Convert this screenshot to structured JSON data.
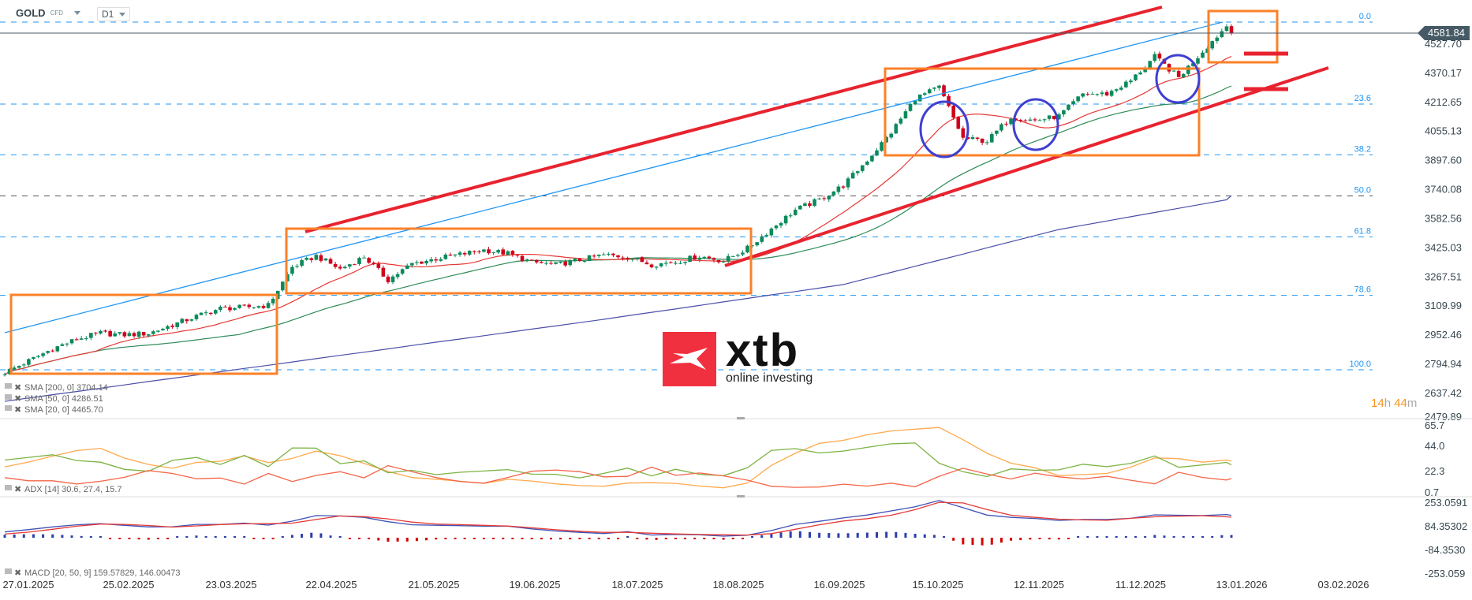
{
  "header": {
    "symbol": "GOLD",
    "instrument_type": "CFD",
    "timeframe": "D1"
  },
  "current_price": "4581.84",
  "countdown": {
    "hours": "14",
    "h": "h",
    "minutes": "44",
    "m": "m"
  },
  "logo": {
    "brand": "xtb",
    "tagline": "online investing",
    "color": "#f1303f"
  },
  "colors": {
    "up": "#0b8a5b",
    "down": "#d0021b",
    "sma20": "#e53935",
    "sma50": "#2e8b57",
    "sma200": "#4a4fa8",
    "fib": "#2196f3",
    "channel": "#e8232f",
    "zone": "#fb8128",
    "circle": "#3f3fd0",
    "adx": "#ffa94d",
    "plus_di": "#7cb342",
    "minus_di": "#f4664a",
    "macd": "#3f51b5",
    "signal": "#e53935"
  },
  "legends": {
    "sma200": "SMA [200, 0] 3704.14",
    "sma50": "SMA [50, 0] 4286.51",
    "sma20": "SMA [20, 0] 4465.70",
    "adx": "ADX [14] 30.6, 27.4, 15.7",
    "macd": "MACD [20, 50, 9] 159.57829, 146.00473"
  },
  "chart_data": [
    {
      "type": "candlestick",
      "title": "",
      "price_axis": [
        "4527.70",
        "4370.17",
        "4212.65",
        "4055.13",
        "3897.60",
        "3740.08",
        "3582.56",
        "3425.03",
        "3267.51",
        "3109.99",
        "2952.46",
        "2794.94",
        "2637.42",
        "2479.89"
      ],
      "date_axis": [
        "27.01.2025",
        "25.02.2025",
        "23.03.2025",
        "22.04.2025",
        "21.05.2025",
        "19.06.2025",
        "18.07.2025",
        "18.08.2025",
        "16.09.2025",
        "15.10.2025",
        "12.11.2025",
        "11.12.2025",
        "13.01.2026",
        "03.02.2026"
      ],
      "close": [
        2745,
        2809,
        2875,
        2926,
        2959,
        2950,
        2958,
        3004,
        3050,
        3093,
        3099,
        3110,
        3317,
        3377,
        3306,
        3373,
        3247,
        3335,
        3362,
        3385,
        3409,
        3390,
        3343,
        3329,
        3355,
        3382,
        3372,
        3330,
        3345,
        3376,
        3350,
        3418,
        3525,
        3626,
        3681,
        3759,
        3896,
        4046,
        4230,
        4290,
        4013,
        3999,
        4130,
        4110,
        4134,
        4254,
        4254,
        4325,
        4456,
        4343,
        4485,
        4622,
        4582
      ],
      "sma200": [
        2590,
        2608,
        2626,
        2643,
        2661,
        2679,
        2697,
        2714,
        2732,
        2750,
        2768,
        2785,
        2803,
        2821,
        2839,
        2856,
        2874,
        2892,
        2910,
        2927,
        2945,
        2963,
        2981,
        2998,
        3016,
        3034,
        3053,
        3072,
        3090,
        3109,
        3128,
        3147,
        3166,
        3184,
        3203,
        3222,
        3255,
        3288,
        3321,
        3354,
        3387,
        3421,
        3454,
        3487,
        3520,
        3543,
        3566,
        3589,
        3612,
        3635,
        3658,
        3681,
        3704
      ],
      "fibonacci": {
        "high": 4643,
        "low": 2761,
        "levels": [
          "0.0",
          "23.6",
          "38.2",
          "50.0",
          "61.8",
          "78.6",
          "100.0"
        ]
      }
    },
    {
      "type": "line",
      "title": "ADX [14]",
      "y_axis": [
        "65.7",
        "44.0",
        "22.3",
        "0.7"
      ],
      "series": [
        {
          "name": "ADX",
          "values": [
            25.7,
            29.8,
            34.9,
            39.6,
            41.6,
            33.2,
            27.7,
            24.5,
            29.5,
            30.5,
            35.0,
            29.3,
            32.9,
            39.2,
            35.2,
            28.6,
            21.7,
            16.5,
            15.1,
            13.3,
            11.5,
            15.0,
            13.5,
            11.1,
            9.6,
            9.1,
            11.8,
            12.1,
            11.5,
            9.3,
            7.7,
            11.8,
            27.0,
            37.3,
            45.8,
            48.4,
            53.2,
            56.4,
            58.0,
            59.4,
            48.9,
            37.3,
            28.8,
            24.9,
            18.1,
            19.1,
            20.0,
            25.4,
            33.3,
            32.7,
            29.7,
            31.5,
            30.6
          ]
        },
        {
          "name": "+DI",
          "values": [
            31.5,
            33.8,
            36,
            31.1,
            29.7,
            23.5,
            21.9,
            31.2,
            33.7,
            27.7,
            35.5,
            25.8,
            41.9,
            41.7,
            28.4,
            30.8,
            20.6,
            22.7,
            19,
            21,
            22.1,
            23.3,
            19.4,
            19.3,
            16.2,
            20.1,
            24.6,
            17.9,
            23.6,
            19.3,
            18.1,
            24.9,
            39.8,
            41.3,
            37.6,
            39.2,
            42.4,
            45.4,
            46.1,
            28.8,
            21.5,
            17.3,
            23.9,
            22.7,
            23.1,
            27.9,
            25.8,
            28.6,
            35,
            25.3,
            27.4,
            29.5,
            27.4
          ]
        },
        {
          "name": "-DI",
          "values": [
            16.4,
            13.7,
            13.7,
            11,
            13.3,
            16.7,
            22.5,
            20,
            15.5,
            16.1,
            10.9,
            20,
            13.1,
            18.3,
            21.5,
            16.3,
            26.7,
            21.6,
            16.5,
            13.1,
            11.7,
            16.6,
            21.9,
            23,
            21.5,
            17.1,
            17.5,
            25.4,
            18.4,
            20.4,
            17.9,
            14.3,
            9,
            8.1,
            8.4,
            10.8,
            9.2,
            11.7,
            8.6,
            17.6,
            24.5,
            19.5,
            15.3,
            20.3,
            17.1,
            15.3,
            17.6,
            14.2,
            11.1,
            21,
            16.6,
            14.4,
            15.7
          ]
        }
      ]
    },
    {
      "type": "line",
      "title": "MACD [20, 50, 9]",
      "y_axis": [
        "253.0591",
        "84.35302",
        "-84.3530",
        "-253.059"
      ],
      "series": [
        {
          "name": "MACD",
          "values": [
            41,
            58,
            77,
            92,
            100,
            88,
            77,
            78,
            95,
            95,
            104,
            90,
            118,
            158,
            155,
            145,
            114,
            92,
            89,
            86,
            82,
            82,
            63,
            48,
            38,
            30,
            43,
            19,
            23,
            20,
            11,
            18,
            51,
            95,
            117,
            141,
            162,
            191,
            220,
            265,
            214,
            161,
            145,
            137,
            123,
            130,
            130,
            138,
            163,
            160,
            158,
            165,
            159.6
          ]
        },
        {
          "name": "Signal",
          "values": [
            26,
            40,
            60,
            82,
            97,
            95,
            87,
            76,
            84,
            94,
            99,
            100,
            104,
            130,
            155,
            150,
            134,
            111,
            98,
            93,
            88,
            83,
            71,
            57,
            46,
            38,
            38,
            32,
            27,
            23,
            21,
            19,
            29,
            60,
            92,
            119,
            136,
            160,
            200,
            252,
            248,
            201,
            160,
            145,
            132,
            127,
            125,
            138,
            149,
            154,
            157,
            149,
            146.0
          ]
        }
      ]
    }
  ]
}
